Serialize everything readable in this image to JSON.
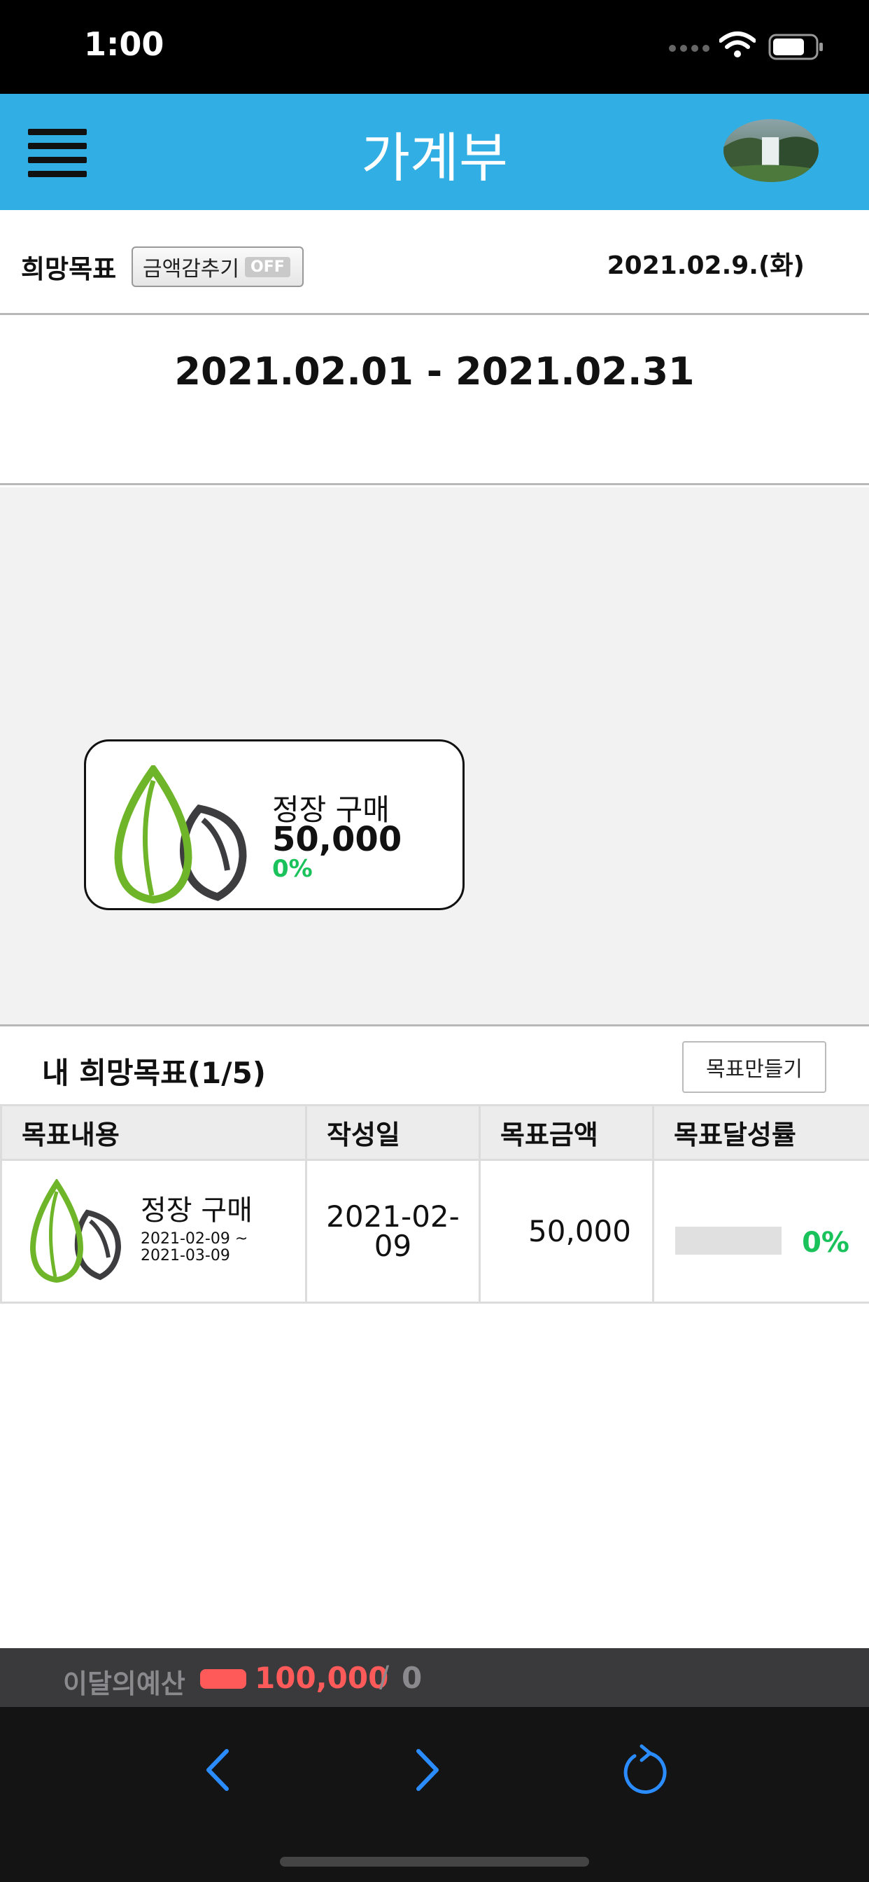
{
  "status_bar": {
    "time": "1:00"
  },
  "header": {
    "title": "가계부"
  },
  "goal_bar": {
    "label": "희망목표",
    "hide_amount_label": "금액감추기",
    "hide_amount_state": "OFF",
    "today": "2021.02.9.(화)"
  },
  "period": {
    "text": "2021.02.01 - 2021.02.31"
  },
  "goal_card": {
    "name": "정장 구매",
    "amount": "50,000",
    "percent": "0%"
  },
  "goal_list": {
    "title": "내 희망목표(1/5)",
    "create_button": "목표만들기",
    "columns": [
      "목표내용",
      "작성일",
      "목표금액",
      "목표달성률"
    ],
    "rows": [
      {
        "name": "정장 구매",
        "range_start": "2021-02-09 ~",
        "range_end": "2021-03-09",
        "created_line1": "2021-02-",
        "created_line2": "09",
        "amount": "50,000",
        "progress": 0,
        "percent": "0%"
      }
    ]
  },
  "budget": {
    "label": "이달의예산",
    "amount": "100,000",
    "separator": "/",
    "spent": "0"
  },
  "colors": {
    "header": "#31aee3",
    "accent_green": "#19c25a",
    "budget_red": "#ff5a5a",
    "nav_icon": "#2a8cff"
  },
  "icons": [
    "menu-icon",
    "seed-icon",
    "chevron-left-icon",
    "chevron-right-icon",
    "refresh-icon",
    "wifi-icon",
    "battery-icon"
  ]
}
